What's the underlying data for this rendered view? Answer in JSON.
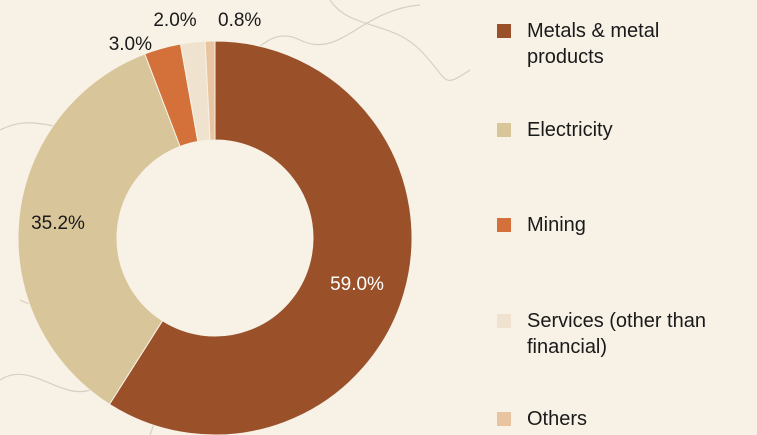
{
  "chart_data": {
    "type": "donut",
    "categories": [
      "Metals & metal products",
      "Electricity",
      "Mining",
      "Services (other than financial)",
      "Others"
    ],
    "values": [
      59.0,
      35.2,
      3.0,
      2.0,
      0.8
    ],
    "value_labels": [
      "59.0%",
      "35.2%",
      "3.0%",
      "2.0%",
      "0.8%"
    ],
    "colors": [
      "#9a512a",
      "#d9c59a",
      "#d4703a",
      "#efe3d0",
      "#e8c4a0"
    ],
    "legend": "right"
  }
}
